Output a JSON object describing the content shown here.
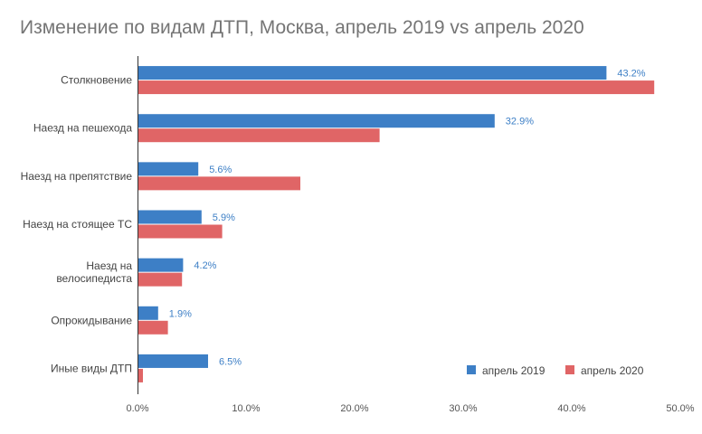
{
  "chart_data": {
    "type": "bar",
    "orientation": "horizontal",
    "title": "Изменение по видам ДТП, Москва, апрель 2019 vs апрель 2020",
    "categories": [
      [
        "Столкновение"
      ],
      [
        "Наезд на пешехода"
      ],
      [
        "Наезд на препятствие"
      ],
      [
        "Наезд на стоящее ТС"
      ],
      [
        "Наезд на",
        "велосипедиста"
      ],
      [
        "Опрокидывание"
      ],
      [
        "Иные виды ДТП"
      ]
    ],
    "series": [
      {
        "name": "апрель 2019",
        "color": "#3d7fc6",
        "values": [
          43.2,
          32.9,
          5.6,
          5.9,
          4.2,
          1.9,
          6.5
        ],
        "labels": [
          "43.2%",
          "32.9%",
          "5.6%",
          "5.9%",
          "4.2%",
          "1.9%",
          "6.5%"
        ]
      },
      {
        "name": "апрель 2020",
        "color": "#e06566",
        "values": [
          47.6,
          22.3,
          15.0,
          7.8,
          4.1,
          2.8,
          0.5
        ]
      }
    ],
    "xlim": [
      0,
      50
    ],
    "xticks": [
      "0.0%",
      "10.0%",
      "20.0%",
      "30.0%",
      "40.0%",
      "50.0%"
    ],
    "xtick_values": [
      0,
      10,
      20,
      30,
      40,
      50
    ],
    "legend": "bottom-right",
    "label_color": "#3d7fc6",
    "grid": false
  }
}
